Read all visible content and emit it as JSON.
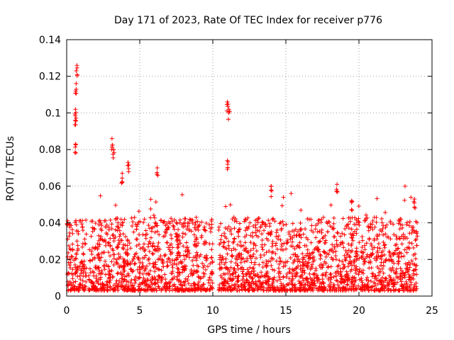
{
  "chart_data": {
    "type": "scatter",
    "title": "Day 171 of 2023, Rate Of TEC Index for receiver p776",
    "xlabel": "GPS time / hours",
    "ylabel": "ROTI / TECUs",
    "xlim": [
      0,
      25
    ],
    "ylim": [
      0,
      0.14
    ],
    "x_ticks": [
      "0",
      "5",
      "10",
      "15",
      "20",
      "25"
    ],
    "y_ticks": [
      "0",
      "0.02",
      "0.04",
      "0.06",
      "0.08",
      "0.1",
      "0.12",
      "0.14"
    ],
    "grid": true,
    "marker": "+",
    "series_color": "#ff0000",
    "series": [
      {
        "name": "ROTI",
        "description": "dense per-satellite ROTI samples over 24 h",
        "x_range": [
          0,
          24
        ],
        "data_gap": [
          10,
          10.4
        ],
        "typical_band": [
          0.003,
          0.035
        ],
        "peaks": [
          {
            "x": 0.7,
            "y": 0.126
          },
          {
            "x": 0.65,
            "y": 0.116
          },
          {
            "x": 0.6,
            "y": 0.102
          },
          {
            "x": 0.6,
            "y": 0.096
          },
          {
            "x": 0.6,
            "y": 0.083
          },
          {
            "x": 3.1,
            "y": 0.086
          },
          {
            "x": 3.2,
            "y": 0.08
          },
          {
            "x": 4.2,
            "y": 0.073
          },
          {
            "x": 3.8,
            "y": 0.067
          },
          {
            "x": 6.2,
            "y": 0.07
          },
          {
            "x": 11.0,
            "y": 0.106
          },
          {
            "x": 11.1,
            "y": 0.102
          },
          {
            "x": 11.0,
            "y": 0.074
          },
          {
            "x": 14.0,
            "y": 0.06
          },
          {
            "x": 18.5,
            "y": 0.061
          },
          {
            "x": 19.5,
            "y": 0.052
          },
          {
            "x": 23.8,
            "y": 0.053
          }
        ]
      }
    ]
  }
}
